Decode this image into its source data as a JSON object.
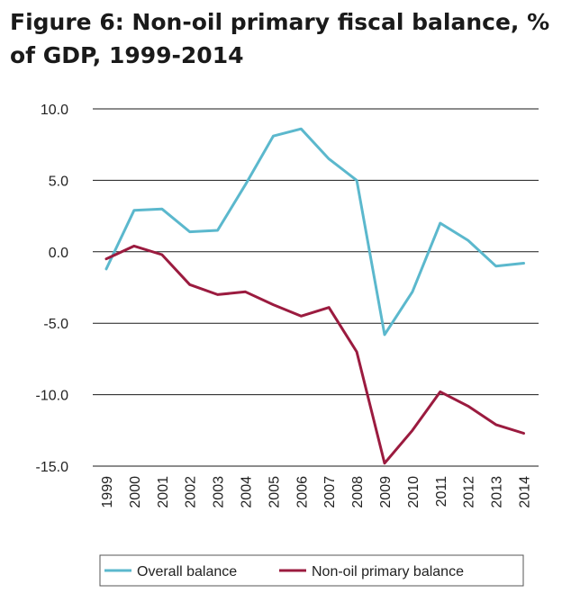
{
  "chart_data": {
    "type": "line",
    "title": "Figure 6: Non-oil primary fiscal balance, % of GDP, 1999-2014",
    "xlabel": "",
    "ylabel": "",
    "x": [
      "1999",
      "2000",
      "2001",
      "2002",
      "2003",
      "2004",
      "2005",
      "2006",
      "2007",
      "2008",
      "2009",
      "2010",
      "2011",
      "2012",
      "2013",
      "2014"
    ],
    "ylim": [
      -15.0,
      10.0
    ],
    "yticks": [
      10.0,
      5.0,
      0.0,
      -5.0,
      -10.0,
      -15.0
    ],
    "ytick_labels": [
      "10.0",
      "5.0",
      "0.0",
      "-5.0",
      "-10.0",
      "-15.0"
    ],
    "grid": true,
    "legend_position": "bottom",
    "series": [
      {
        "name": "Overall balance",
        "color": "#5bb8cd",
        "values": [
          -1.2,
          2.9,
          3.0,
          1.4,
          1.5,
          4.7,
          8.1,
          8.6,
          6.5,
          5.0,
          -5.8,
          -2.8,
          2.0,
          0.8,
          -1.0,
          -0.8
        ]
      },
      {
        "name": "Non-oil primary balance",
        "color": "#9b1b3f",
        "values": [
          -0.5,
          0.4,
          -0.2,
          -2.3,
          -3.0,
          -2.8,
          -3.7,
          -4.5,
          -3.9,
          -7.0,
          -14.8,
          -12.5,
          -9.8,
          -10.8,
          -12.1,
          -12.7
        ]
      }
    ]
  }
}
